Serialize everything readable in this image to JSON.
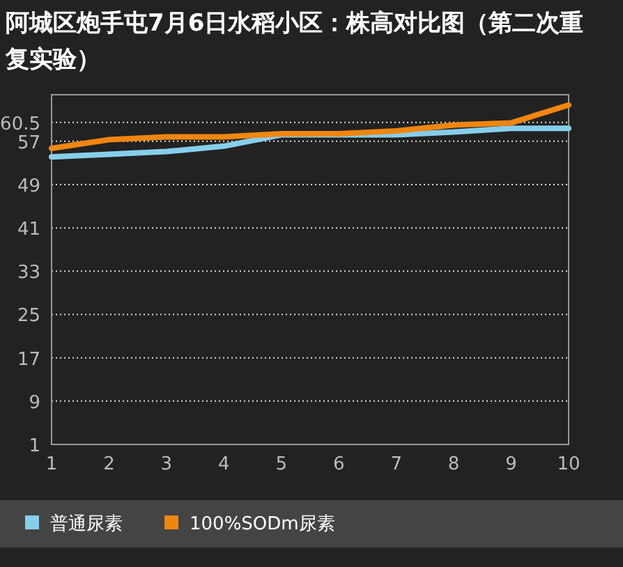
{
  "chart_data": {
    "type": "line",
    "title": "阿城区炮手屯7月6日水稻小区：株高对比图（第二次重复实验）",
    "x": [
      1,
      2,
      3,
      4,
      5,
      6,
      7,
      8,
      9,
      10
    ],
    "xlim": [
      1,
      10
    ],
    "xticks": [
      1,
      2,
      3,
      4,
      5,
      6,
      7,
      8,
      9,
      10
    ],
    "ylim": [
      1,
      65.6
    ],
    "yticks": [
      1,
      9,
      17,
      25,
      33,
      41,
      49,
      57,
      60.5
    ],
    "grid": "y",
    "legend": "bottom",
    "marker": "none",
    "line_style": "solid",
    "series": [
      {
        "name": "普通尿素",
        "color": "#87ceeb",
        "values": [
          54.1,
          54.6,
          55.1,
          56.1,
          58.2,
          58.2,
          58.2,
          58.7,
          59.4,
          59.4
        ]
      },
      {
        "name": "100%SODm尿素",
        "color": "#f0860f",
        "values": [
          55.7,
          57.3,
          57.8,
          57.8,
          58.4,
          58.4,
          58.9,
          60.0,
          60.4,
          63.7
        ]
      }
    ]
  }
}
